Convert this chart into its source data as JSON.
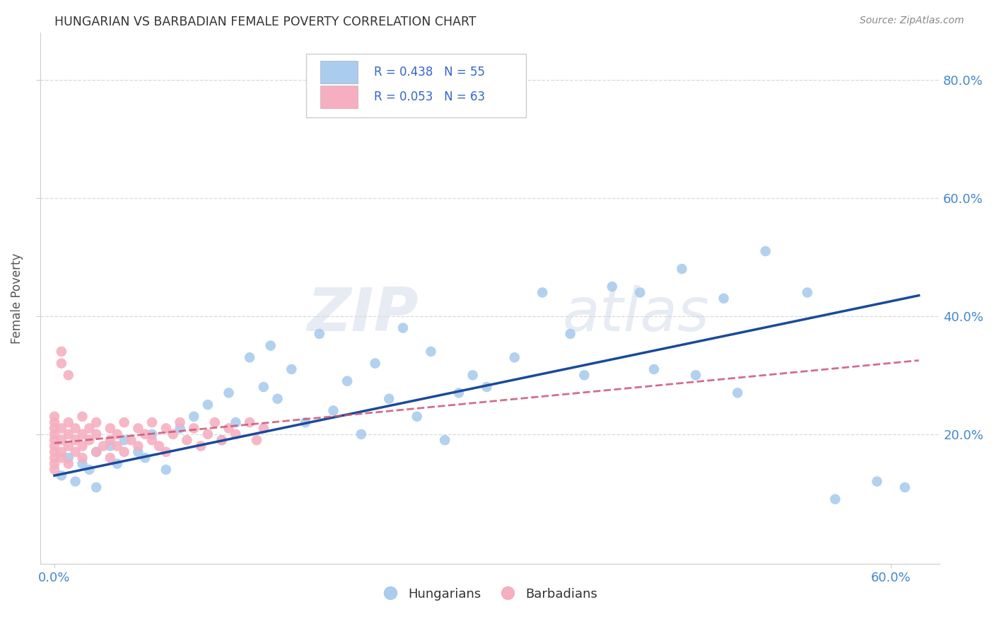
{
  "title": "HUNGARIAN VS BARBADIAN FEMALE POVERTY CORRELATION CHART",
  "source": "Source: ZipAtlas.com",
  "ylabel": "Female Poverty",
  "xlim": [
    -0.01,
    0.635
  ],
  "ylim": [
    -0.02,
    0.88
  ],
  "xticks": [
    0.0,
    0.6
  ],
  "xticklabels": [
    "0.0%",
    "60.0%"
  ],
  "yticks": [
    0.2,
    0.4,
    0.6,
    0.8
  ],
  "yticklabels": [
    "20.0%",
    "40.0%",
    "60.0%",
    "80.0%"
  ],
  "hungarian_R": 0.438,
  "hungarian_N": 55,
  "barbadian_R": 0.053,
  "barbadian_N": 63,
  "hungarian_color": "#aacced",
  "hungarian_line_color": "#1a4a9a",
  "barbadian_color": "#f5afc0",
  "barbadian_line_color": "#cc5577",
  "background_color": "#ffffff",
  "grid_color": "#d0d0d0",
  "watermark": "ZIPatlas",
  "hun_line_x0": 0.0,
  "hun_line_y0": 0.13,
  "hun_line_x1": 0.62,
  "hun_line_y1": 0.435,
  "bar_line_x0": 0.0,
  "bar_line_y0": 0.185,
  "bar_line_x1": 0.62,
  "bar_line_y1": 0.325,
  "hungarian_x": [
    0.005,
    0.01,
    0.015,
    0.02,
    0.025,
    0.03,
    0.03,
    0.04,
    0.045,
    0.05,
    0.06,
    0.065,
    0.07,
    0.08,
    0.09,
    0.1,
    0.11,
    0.12,
    0.125,
    0.13,
    0.14,
    0.15,
    0.155,
    0.16,
    0.17,
    0.18,
    0.19,
    0.2,
    0.21,
    0.22,
    0.23,
    0.24,
    0.25,
    0.26,
    0.27,
    0.28,
    0.29,
    0.3,
    0.31,
    0.33,
    0.35,
    0.37,
    0.38,
    0.4,
    0.42,
    0.43,
    0.45,
    0.46,
    0.48,
    0.49,
    0.51,
    0.54,
    0.56,
    0.59,
    0.61
  ],
  "hungarian_y": [
    0.13,
    0.16,
    0.12,
    0.15,
    0.14,
    0.17,
    0.11,
    0.18,
    0.15,
    0.19,
    0.17,
    0.16,
    0.2,
    0.14,
    0.21,
    0.23,
    0.25,
    0.19,
    0.27,
    0.22,
    0.33,
    0.28,
    0.35,
    0.26,
    0.31,
    0.22,
    0.37,
    0.24,
    0.29,
    0.2,
    0.32,
    0.26,
    0.38,
    0.23,
    0.34,
    0.19,
    0.27,
    0.3,
    0.28,
    0.33,
    0.44,
    0.37,
    0.3,
    0.45,
    0.44,
    0.31,
    0.48,
    0.3,
    0.43,
    0.27,
    0.51,
    0.44,
    0.09,
    0.12,
    0.11
  ],
  "barbadian_x": [
    0.0,
    0.0,
    0.0,
    0.0,
    0.0,
    0.0,
    0.0,
    0.0,
    0.0,
    0.0,
    0.005,
    0.005,
    0.005,
    0.005,
    0.01,
    0.01,
    0.01,
    0.01,
    0.015,
    0.015,
    0.015,
    0.02,
    0.02,
    0.02,
    0.02,
    0.025,
    0.025,
    0.03,
    0.03,
    0.03,
    0.035,
    0.04,
    0.04,
    0.04,
    0.045,
    0.045,
    0.05,
    0.05,
    0.055,
    0.06,
    0.06,
    0.065,
    0.07,
    0.07,
    0.075,
    0.08,
    0.08,
    0.085,
    0.09,
    0.095,
    0.1,
    0.105,
    0.11,
    0.115,
    0.12,
    0.125,
    0.13,
    0.14,
    0.145,
    0.15,
    0.005,
    0.01,
    0.005
  ],
  "barbadian_y": [
    0.14,
    0.16,
    0.18,
    0.2,
    0.22,
    0.19,
    0.17,
    0.21,
    0.15,
    0.23,
    0.17,
    0.19,
    0.21,
    0.16,
    0.18,
    0.2,
    0.15,
    0.22,
    0.19,
    0.17,
    0.21,
    0.18,
    0.2,
    0.16,
    0.23,
    0.19,
    0.21,
    0.17,
    0.2,
    0.22,
    0.18,
    0.19,
    0.21,
    0.16,
    0.2,
    0.18,
    0.17,
    0.22,
    0.19,
    0.21,
    0.18,
    0.2,
    0.19,
    0.22,
    0.18,
    0.21,
    0.17,
    0.2,
    0.22,
    0.19,
    0.21,
    0.18,
    0.2,
    0.22,
    0.19,
    0.21,
    0.2,
    0.22,
    0.19,
    0.21,
    0.34,
    0.3,
    0.32
  ]
}
